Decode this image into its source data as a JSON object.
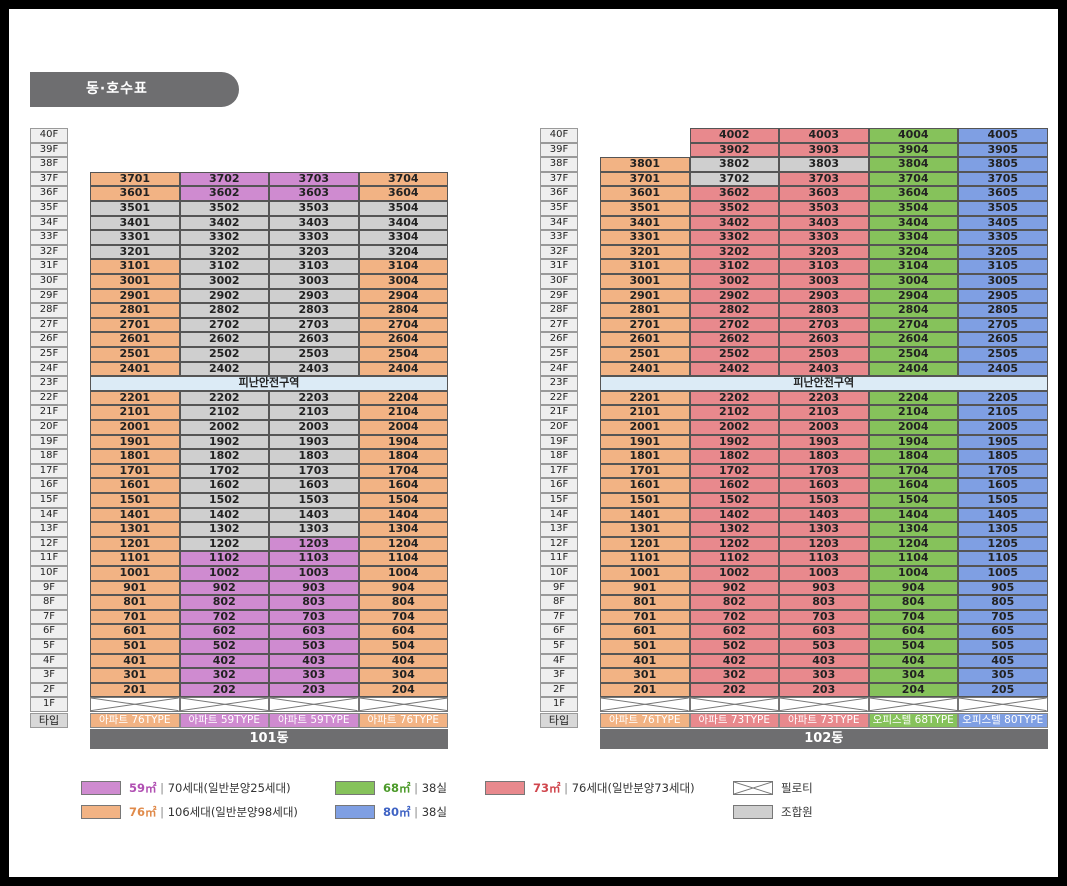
{
  "title": "동·호수표",
  "colors": {
    "orange": "#f2b384",
    "purple": "#cf8bd0",
    "gray": "#cfcfcf",
    "red": "#e8898d",
    "green": "#86c25b",
    "blue": "#7f9fe3",
    "refuge": "#dcebf6"
  },
  "floor_labels": [
    "40F",
    "39F",
    "38F",
    "37F",
    "36F",
    "35F",
    "34F",
    "33F",
    "32F",
    "31F",
    "30F",
    "29F",
    "28F",
    "27F",
    "26F",
    "25F",
    "24F",
    "23F",
    "22F",
    "21F",
    "20F",
    "19F",
    "18F",
    "17F",
    "16F",
    "15F",
    "14F",
    "13F",
    "12F",
    "11F",
    "10F",
    "9F",
    "8F",
    "7F",
    "6F",
    "5F",
    "4F",
    "3F",
    "2F",
    "1F"
  ],
  "type_label": "타입",
  "refuge_label": "피난안전구역",
  "buildings": [
    {
      "name": "101동",
      "top_floor": 37,
      "columns": [
        {
          "type": "아파트 76TYPE",
          "type_color": "orange",
          "units": {
            "37": "3701",
            "36": "3601",
            "35": "3501",
            "34": "3401",
            "33": "3301",
            "32": "3201",
            "31": "3101",
            "30": "3001",
            "29": "2901",
            "28": "2801",
            "27": "2701",
            "26": "2601",
            "25": "2501",
            "24": "2401",
            "22": "2201",
            "21": "2101",
            "20": "2001",
            "19": "1901",
            "18": "1801",
            "17": "1701",
            "16": "1601",
            "15": "1501",
            "14": "1401",
            "13": "1301",
            "12": "1201",
            "11": "1101",
            "10": "1001",
            "9": "901",
            "8": "801",
            "7": "701",
            "6": "601",
            "5": "501",
            "4": "401",
            "3": "301",
            "2": "201"
          }
        },
        {
          "type": "아파트 59TYPE",
          "type_color": "purple",
          "units": {
            "37": "3702",
            "36": "3602",
            "35": "3502",
            "34": "3402",
            "33": "3302",
            "32": "3202",
            "31": "3102",
            "30": "3002",
            "29": "2902",
            "28": "2802",
            "27": "2702",
            "26": "2602",
            "25": "2502",
            "24": "2402",
            "22": "2202",
            "21": "2102",
            "20": "2002",
            "19": "1902",
            "18": "1802",
            "17": "1702",
            "16": "1602",
            "15": "1502",
            "14": "1402",
            "13": "1302",
            "12": "1202",
            "11": "1102",
            "10": "1002",
            "9": "902",
            "8": "802",
            "7": "702",
            "6": "602",
            "5": "502",
            "4": "402",
            "3": "302",
            "2": "202"
          }
        },
        {
          "type": "아파트 59TYPE",
          "type_color": "purple",
          "units": {
            "37": "3703",
            "36": "3603",
            "35": "3503",
            "34": "3403",
            "33": "3303",
            "32": "3203",
            "31": "3103",
            "30": "3003",
            "29": "2903",
            "28": "2803",
            "27": "2703",
            "26": "2603",
            "25": "2503",
            "24": "2403",
            "22": "2203",
            "21": "2103",
            "20": "2003",
            "19": "1903",
            "18": "1803",
            "17": "1703",
            "16": "1603",
            "15": "1503",
            "14": "1403",
            "13": "1303",
            "12": "1203",
            "11": "1103",
            "10": "1003",
            "9": "903",
            "8": "803",
            "7": "703",
            "6": "603",
            "5": "503",
            "4": "403",
            "3": "303",
            "2": "203"
          }
        },
        {
          "type": "아파트 76TYPE",
          "type_color": "orange",
          "units": {
            "37": "3704",
            "36": "3604",
            "35": "3504",
            "34": "3404",
            "33": "3304",
            "32": "3204",
            "31": "3104",
            "30": "3004",
            "29": "2904",
            "28": "2804",
            "27": "2704",
            "26": "2604",
            "25": "2504",
            "24": "2404",
            "22": "2204",
            "21": "2104",
            "20": "2004",
            "19": "1904",
            "18": "1804",
            "17": "1704",
            "16": "1604",
            "15": "1504",
            "14": "1404",
            "13": "1304",
            "12": "1204",
            "11": "1104",
            "10": "1004",
            "9": "904",
            "8": "804",
            "7": "704",
            "6": "604",
            "5": "504",
            "4": "404",
            "3": "304",
            "2": "204"
          }
        }
      ],
      "gray_cells": {
        "0": [
          "35",
          "34",
          "33",
          "32"
        ],
        "1": [
          "35",
          "34",
          "33",
          "32",
          "31",
          "30",
          "29",
          "28",
          "27",
          "26",
          "25",
          "24",
          "22",
          "21",
          "20",
          "19",
          "18",
          "17",
          "16",
          "15",
          "14",
          "13",
          "12"
        ],
        "2": [
          "35",
          "34",
          "33",
          "32",
          "31",
          "30",
          "29",
          "28",
          "27",
          "26",
          "25",
          "24",
          "22",
          "21",
          "20",
          "19",
          "18",
          "17",
          "16",
          "15",
          "14",
          "13"
        ],
        "3": [
          "35",
          "34",
          "33",
          "32"
        ]
      }
    },
    {
      "name": "102동",
      "top_floor": 40,
      "columns": [
        {
          "type": "아파트 76TYPE",
          "type_color": "orange",
          "units": {
            "38": "3801",
            "37": "3701",
            "36": "3601",
            "35": "3501",
            "34": "3401",
            "33": "3301",
            "32": "3201",
            "31": "3101",
            "30": "3001",
            "29": "2901",
            "28": "2801",
            "27": "2701",
            "26": "2601",
            "25": "2501",
            "24": "2401",
            "22": "2201",
            "21": "2101",
            "20": "2001",
            "19": "1901",
            "18": "1801",
            "17": "1701",
            "16": "1601",
            "15": "1501",
            "14": "1401",
            "13": "1301",
            "12": "1201",
            "11": "1101",
            "10": "1001",
            "9": "901",
            "8": "801",
            "7": "701",
            "6": "601",
            "5": "501",
            "4": "401",
            "3": "301",
            "2": "201"
          }
        },
        {
          "type": "아파트 73TYPE",
          "type_color": "red",
          "units": {
            "40": "4002",
            "39": "3902",
            "38": "3802",
            "37": "3702",
            "36": "3602",
            "35": "3502",
            "34": "3402",
            "33": "3302",
            "32": "3202",
            "31": "3102",
            "30": "3002",
            "29": "2902",
            "28": "2802",
            "27": "2702",
            "26": "2602",
            "25": "2502",
            "24": "2402",
            "22": "2202",
            "21": "2102",
            "20": "2002",
            "19": "1902",
            "18": "1802",
            "17": "1702",
            "16": "1602",
            "15": "1502",
            "14": "1402",
            "13": "1302",
            "12": "1202",
            "11": "1102",
            "10": "1002",
            "9": "902",
            "8": "802",
            "7": "702",
            "6": "602",
            "5": "502",
            "4": "402",
            "3": "302",
            "2": "202"
          }
        },
        {
          "type": "아파트 73TYPE",
          "type_color": "red",
          "units": {
            "40": "4003",
            "39": "3903",
            "38": "3803",
            "37": "3703",
            "36": "3603",
            "35": "3503",
            "34": "3403",
            "33": "3303",
            "32": "3203",
            "31": "3103",
            "30": "3003",
            "29": "2903",
            "28": "2803",
            "27": "2703",
            "26": "2603",
            "25": "2503",
            "24": "2403",
            "22": "2203",
            "21": "2103",
            "20": "2003",
            "19": "1903",
            "18": "1803",
            "17": "1703",
            "16": "1603",
            "15": "1503",
            "14": "1403",
            "13": "1303",
            "12": "1203",
            "11": "1103",
            "10": "1003",
            "9": "903",
            "8": "803",
            "7": "703",
            "6": "603",
            "5": "503",
            "4": "403",
            "3": "303",
            "2": "203"
          }
        },
        {
          "type": "오피스텔 68TYPE",
          "type_color": "green",
          "units": {
            "40": "4004",
            "39": "3904",
            "38": "3804",
            "37": "3704",
            "36": "3604",
            "35": "3504",
            "34": "3404",
            "33": "3304",
            "32": "3204",
            "31": "3104",
            "30": "3004",
            "29": "2904",
            "28": "2804",
            "27": "2704",
            "26": "2604",
            "25": "2504",
            "24": "2404",
            "22": "2204",
            "21": "2104",
            "20": "2004",
            "19": "1904",
            "18": "1804",
            "17": "1704",
            "16": "1604",
            "15": "1504",
            "14": "1404",
            "13": "1304",
            "12": "1204",
            "11": "1104",
            "10": "1004",
            "9": "904",
            "8": "804",
            "7": "704",
            "6": "604",
            "5": "504",
            "4": "404",
            "3": "304",
            "2": "204"
          }
        },
        {
          "type": "오피스텔 80TYPE",
          "type_color": "blue",
          "units": {
            "40": "4005",
            "39": "3905",
            "38": "3805",
            "37": "3705",
            "36": "3605",
            "35": "3505",
            "34": "3405",
            "33": "3305",
            "32": "3205",
            "31": "3105",
            "30": "3005",
            "29": "2905",
            "28": "2805",
            "27": "2705",
            "26": "2605",
            "25": "2505",
            "24": "2405",
            "22": "2205",
            "21": "2105",
            "20": "2005",
            "19": "1905",
            "18": "1805",
            "17": "1705",
            "16": "1605",
            "15": "1505",
            "14": "1405",
            "13": "1305",
            "12": "1205",
            "11": "1105",
            "10": "1005",
            "9": "905",
            "8": "805",
            "7": "705",
            "6": "605",
            "5": "505",
            "4": "405",
            "3": "305",
            "2": "205"
          }
        }
      ],
      "gray_cells": {
        "1": [
          "38",
          "37"
        ],
        "2": [
          "38"
        ]
      }
    }
  ],
  "legend": [
    {
      "color": "purple",
      "area": "59㎡",
      "text": "70세대(일반분양25세대)",
      "area_color": "#b04fb2"
    },
    {
      "color": "orange",
      "area": "76㎡",
      "text": "106세대(일반분양98세대)",
      "area_color": "#e08a4a"
    },
    {
      "color": "green",
      "area": "68㎡",
      "text": "38실",
      "area_color": "#4c9a2a"
    },
    {
      "color": "blue",
      "area": "80㎡",
      "text": "38실",
      "area_color": "#3f63c4"
    },
    {
      "color": "red",
      "area": "73㎡",
      "text": "76세대(일반분양73세대)",
      "area_color": "#d0464d"
    },
    {
      "color": "piloti",
      "area": "",
      "text": "필로티",
      "area_color": ""
    },
    {
      "color": "gray",
      "area": "",
      "text": "조합원",
      "area_color": ""
    }
  ]
}
